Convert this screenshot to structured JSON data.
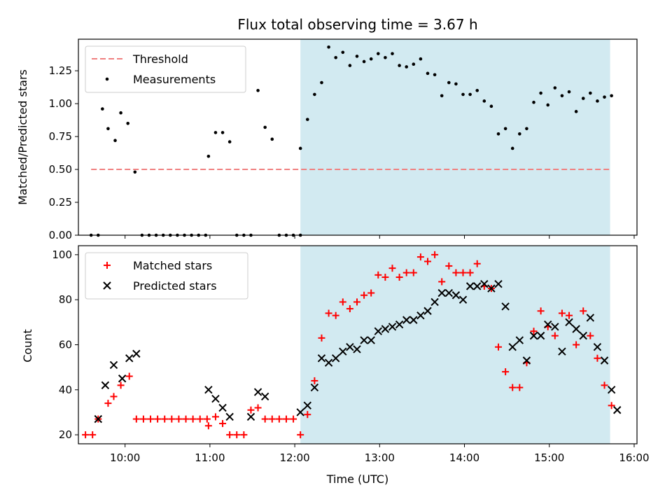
{
  "chart_data": [
    {
      "type": "scatter",
      "title": "Flux total observing time = 3.67 h",
      "ylabel": "Matched/Predicted stars",
      "ylim": [
        0,
        1.49
      ],
      "yticks": [
        "0.00",
        "0.25",
        "0.50",
        "0.75",
        "1.00",
        "1.25"
      ],
      "xlim": [
        "09:27",
        "16:02"
      ],
      "shaded_region": {
        "start": "12:04",
        "end": "15:43",
        "color": "#add8e6"
      },
      "legend_position": "top-left",
      "threshold": {
        "name": "Threshold",
        "value": 0.5,
        "x_range": [
          "09:36",
          "15:43"
        ],
        "color": "#f08080"
      },
      "series": [
        {
          "name": "Measurements",
          "color": "#000000",
          "marker": "dot",
          "points": [
            [
              "09:36",
              0
            ],
            [
              "09:41",
              0
            ],
            [
              "09:44",
              0.96
            ],
            [
              "09:48",
              0.81
            ],
            [
              "09:53",
              0.72
            ],
            [
              "09:57",
              0.93
            ],
            [
              "10:02",
              0.85
            ],
            [
              "10:07",
              0.48
            ],
            [
              "10:12",
              0
            ],
            [
              "10:17",
              0
            ],
            [
              "10:22",
              0
            ],
            [
              "10:27",
              0
            ],
            [
              "10:32",
              0
            ],
            [
              "10:37",
              0
            ],
            [
              "10:42",
              0
            ],
            [
              "10:47",
              0
            ],
            [
              "10:52",
              0
            ],
            [
              "10:57",
              0
            ],
            [
              "10:59",
              0.6
            ],
            [
              "11:04",
              0.78
            ],
            [
              "11:09",
              0.78
            ],
            [
              "11:14",
              0.71
            ],
            [
              "11:19",
              0
            ],
            [
              "11:24",
              0
            ],
            [
              "11:29",
              0
            ],
            [
              "11:34",
              1.1
            ],
            [
              "11:39",
              0.82
            ],
            [
              "11:44",
              0.73
            ],
            [
              "11:49",
              0
            ],
            [
              "11:54",
              0
            ],
            [
              "11:59",
              0
            ],
            [
              "12:04",
              0
            ],
            [
              "12:04",
              0.66
            ],
            [
              "12:09",
              0.88
            ],
            [
              "12:14",
              1.07
            ],
            [
              "12:19",
              1.16
            ],
            [
              "12:24",
              1.43
            ],
            [
              "12:29",
              1.35
            ],
            [
              "12:34",
              1.39
            ],
            [
              "12:39",
              1.29
            ],
            [
              "12:44",
              1.36
            ],
            [
              "12:49",
              1.32
            ],
            [
              "12:54",
              1.34
            ],
            [
              "12:59",
              1.38
            ],
            [
              "13:04",
              1.35
            ],
            [
              "13:09",
              1.38
            ],
            [
              "13:14",
              1.29
            ],
            [
              "13:19",
              1.28
            ],
            [
              "13:24",
              1.3
            ],
            [
              "13:29",
              1.34
            ],
            [
              "13:34",
              1.23
            ],
            [
              "13:39",
              1.22
            ],
            [
              "13:44",
              1.06
            ],
            [
              "13:49",
              1.16
            ],
            [
              "13:54",
              1.15
            ],
            [
              "13:59",
              1.07
            ],
            [
              "14:04",
              1.07
            ],
            [
              "14:09",
              1.1
            ],
            [
              "14:14",
              1.02
            ],
            [
              "14:19",
              0.98
            ],
            [
              "14:24",
              0.77
            ],
            [
              "14:29",
              0.81
            ],
            [
              "14:34",
              0.66
            ],
            [
              "14:39",
              0.77
            ],
            [
              "14:44",
              0.81
            ],
            [
              "14:49",
              1.01
            ],
            [
              "14:54",
              1.08
            ],
            [
              "14:59",
              0.99
            ],
            [
              "15:04",
              1.12
            ],
            [
              "15:09",
              1.06
            ],
            [
              "15:14",
              1.09
            ],
            [
              "15:19",
              0.94
            ],
            [
              "15:24",
              1.04
            ],
            [
              "15:29",
              1.08
            ],
            [
              "15:34",
              1.02
            ],
            [
              "15:39",
              1.05
            ],
            [
              "15:44",
              1.06
            ]
          ]
        }
      ]
    },
    {
      "type": "scatter",
      "xlabel": "Time (UTC)",
      "ylabel": "Count",
      "ylim": [
        16,
        104
      ],
      "yticks": [
        "20",
        "40",
        "60",
        "80",
        "100"
      ],
      "xticks": [
        "10:00",
        "11:00",
        "12:00",
        "13:00",
        "14:00",
        "15:00",
        "16:00"
      ],
      "xlim": [
        "09:27",
        "16:02"
      ],
      "shaded_region": {
        "start": "12:04",
        "end": "15:43",
        "color": "#add8e6"
      },
      "legend_position": "top-left",
      "series": [
        {
          "name": "Matched stars",
          "color": "#ff0000",
          "marker": "plus",
          "points": [
            [
              "09:32",
              20
            ],
            [
              "09:37",
              20
            ],
            [
              "09:41",
              27
            ],
            [
              "09:48",
              34
            ],
            [
              "09:52",
              37
            ],
            [
              "09:57",
              42
            ],
            [
              "10:03",
              46
            ],
            [
              "10:08",
              27
            ],
            [
              "10:13",
              27
            ],
            [
              "10:18",
              27
            ],
            [
              "10:23",
              27
            ],
            [
              "10:28",
              27
            ],
            [
              "10:33",
              27
            ],
            [
              "10:38",
              27
            ],
            [
              "10:43",
              27
            ],
            [
              "10:48",
              27
            ],
            [
              "10:53",
              27
            ],
            [
              "10:58",
              27
            ],
            [
              "10:59",
              24
            ],
            [
              "11:04",
              28
            ],
            [
              "11:09",
              25
            ],
            [
              "11:14",
              20
            ],
            [
              "11:19",
              20
            ],
            [
              "11:24",
              20
            ],
            [
              "11:29",
              31
            ],
            [
              "11:34",
              32
            ],
            [
              "11:39",
              27
            ],
            [
              "11:44",
              27
            ],
            [
              "11:49",
              27
            ],
            [
              "11:54",
              27
            ],
            [
              "11:59",
              27
            ],
            [
              "12:04",
              20
            ],
            [
              "12:09",
              29
            ],
            [
              "12:14",
              44
            ],
            [
              "12:19",
              63
            ],
            [
              "12:24",
              74
            ],
            [
              "12:29",
              73
            ],
            [
              "12:34",
              79
            ],
            [
              "12:39",
              76
            ],
            [
              "12:44",
              79
            ],
            [
              "12:49",
              82
            ],
            [
              "12:54",
              83
            ],
            [
              "12:59",
              91
            ],
            [
              "13:04",
              90
            ],
            [
              "13:09",
              94
            ],
            [
              "13:14",
              90
            ],
            [
              "13:19",
              92
            ],
            [
              "13:24",
              92
            ],
            [
              "13:29",
              99
            ],
            [
              "13:34",
              97
            ],
            [
              "13:39",
              100
            ],
            [
              "13:44",
              88
            ],
            [
              "13:49",
              95
            ],
            [
              "13:54",
              92
            ],
            [
              "13:59",
              92
            ],
            [
              "14:04",
              92
            ],
            [
              "14:09",
              96
            ],
            [
              "14:14",
              86
            ],
            [
              "14:19",
              85
            ],
            [
              "14:24",
              59
            ],
            [
              "14:29",
              48
            ],
            [
              "14:34",
              41
            ],
            [
              "14:39",
              41
            ],
            [
              "14:44",
              52
            ],
            [
              "14:49",
              66
            ],
            [
              "14:54",
              75
            ],
            [
              "14:59",
              68
            ],
            [
              "15:04",
              64
            ],
            [
              "15:09",
              74
            ],
            [
              "15:14",
              73
            ],
            [
              "15:19",
              60
            ],
            [
              "15:24",
              75
            ],
            [
              "15:29",
              64
            ],
            [
              "15:34",
              54
            ],
            [
              "15:39",
              42
            ],
            [
              "15:44",
              33
            ]
          ]
        },
        {
          "name": "Predicted stars",
          "color": "#000000",
          "marker": "x",
          "points": [
            [
              "09:41",
              27
            ],
            [
              "09:46",
              42
            ],
            [
              "09:52",
              51
            ],
            [
              "09:58",
              45
            ],
            [
              "10:03",
              54
            ],
            [
              "10:08",
              56
            ],
            [
              "10:59",
              40
            ],
            [
              "11:04",
              36
            ],
            [
              "11:09",
              32
            ],
            [
              "11:14",
              28
            ],
            [
              "11:29",
              28
            ],
            [
              "11:34",
              39
            ],
            [
              "11:39",
              37
            ],
            [
              "12:04",
              30
            ],
            [
              "12:09",
              33
            ],
            [
              "12:14",
              41
            ],
            [
              "12:19",
              54
            ],
            [
              "12:24",
              52
            ],
            [
              "12:29",
              54
            ],
            [
              "12:34",
              57
            ],
            [
              "12:39",
              59
            ],
            [
              "12:44",
              58
            ],
            [
              "12:49",
              62
            ],
            [
              "12:54",
              62
            ],
            [
              "12:59",
              66
            ],
            [
              "13:04",
              67
            ],
            [
              "13:09",
              68
            ],
            [
              "13:14",
              69
            ],
            [
              "13:19",
              71
            ],
            [
              "13:24",
              71
            ],
            [
              "13:29",
              73
            ],
            [
              "13:34",
              75
            ],
            [
              "13:39",
              79
            ],
            [
              "13:44",
              83
            ],
            [
              "13:49",
              83
            ],
            [
              "13:54",
              82
            ],
            [
              "13:59",
              80
            ],
            [
              "14:04",
              86
            ],
            [
              "14:09",
              86
            ],
            [
              "14:14",
              87
            ],
            [
              "14:19",
              85
            ],
            [
              "14:24",
              87
            ],
            [
              "14:29",
              77
            ],
            [
              "14:34",
              59
            ],
            [
              "14:39",
              62
            ],
            [
              "14:44",
              53
            ],
            [
              "14:49",
              64
            ],
            [
              "14:54",
              64
            ],
            [
              "14:59",
              69
            ],
            [
              "15:04",
              68
            ],
            [
              "15:09",
              57
            ],
            [
              "15:14",
              70
            ],
            [
              "15:19",
              67
            ],
            [
              "15:24",
              64
            ],
            [
              "15:29",
              72
            ],
            [
              "15:34",
              59
            ],
            [
              "15:39",
              53
            ],
            [
              "15:44",
              40
            ],
            [
              "15:48",
              31
            ]
          ]
        }
      ]
    }
  ]
}
